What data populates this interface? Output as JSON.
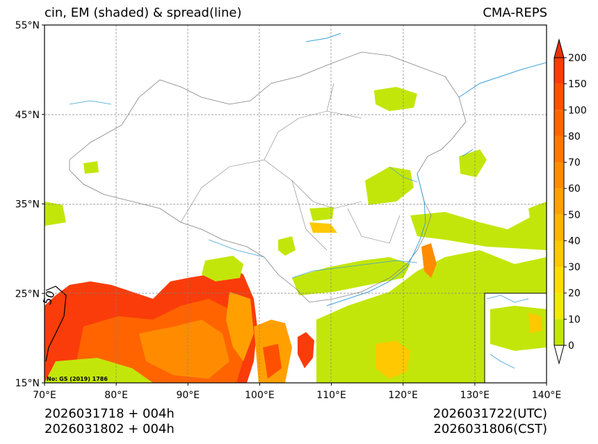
{
  "title": {
    "left": "cin, EM (shaded) & spread(line)",
    "right": "CMA-REPS"
  },
  "map": {
    "lat_labels": [
      "55°N",
      "45°N",
      "35°N",
      "25°N",
      "15°N"
    ],
    "lon_labels": [
      "70°E",
      "80°E",
      "90°E",
      "100°E",
      "110°E",
      "120°E",
      "130°E",
      "140°E"
    ],
    "contour_label": "50",
    "approval_no": "No: GS (2019) 1786"
  },
  "colorbar": {
    "levels": [
      "0",
      "10",
      "20",
      "30",
      "40",
      "50",
      "60",
      "70",
      "80",
      "100",
      "150",
      "200"
    ],
    "colors": [
      "#c3e60a",
      "#f0ea0a",
      "#ffdc00",
      "#ffc800",
      "#ffb400",
      "#ffa000",
      "#ff8c00",
      "#ff7800",
      "#ff6400",
      "#ff5000",
      "#fa3c0a"
    ],
    "over_color": "#e8320a",
    "under_color": "#ffffff"
  },
  "footer": {
    "run_utc": "2026031718  +  004h",
    "run_cst": "2026031802  +  004h",
    "valid_utc": "2026031722(UTC)",
    "valid_cst": "2026031806(CST)"
  }
}
